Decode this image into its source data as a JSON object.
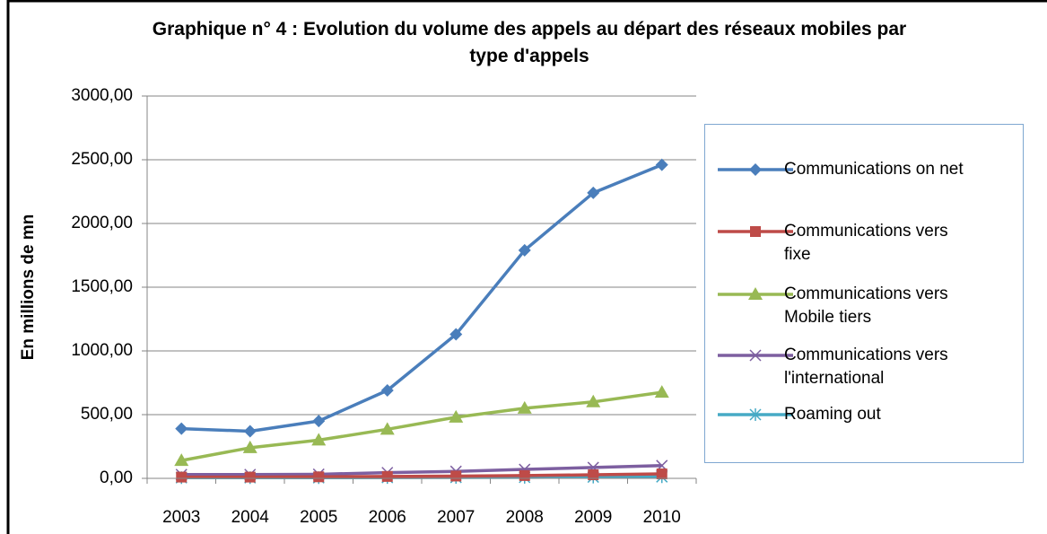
{
  "chart_data": {
    "type": "line",
    "title": "Graphique n° 4 : Evolution du volume des appels au départ des réseaux mobiles par type d'appels",
    "y_label": "En millions de mn",
    "categories": [
      "2003",
      "2004",
      "2005",
      "2006",
      "2007",
      "2008",
      "2009",
      "2010"
    ],
    "series": [
      {
        "name": "Communications on net",
        "color": "#4a7ebb",
        "marker": "diamond",
        "values": [
          390,
          370,
          450,
          690,
          1130,
          1790,
          2240,
          2460
        ]
      },
      {
        "name": "Communications vers fixe",
        "color": "#be4b48",
        "marker": "square",
        "values": [
          10,
          10,
          12,
          15,
          18,
          22,
          28,
          35
        ]
      },
      {
        "name": "Communications vers Mobile tiers",
        "color": "#98b954",
        "marker": "triangle",
        "values": [
          140,
          240,
          300,
          385,
          480,
          550,
          600,
          675
        ]
      },
      {
        "name": "Communications vers l'international",
        "color": "#7d5fa0",
        "marker": "x",
        "values": [
          30,
          30,
          32,
          45,
          55,
          70,
          85,
          100
        ]
      },
      {
        "name": "Roaming out",
        "color": "#46aac5",
        "marker": "star",
        "values": [
          5,
          5,
          5,
          6,
          7,
          8,
          10,
          12
        ]
      }
    ],
    "ylim": [
      0,
      3000
    ],
    "yticks": [
      {
        "value": 0,
        "label": "0,00"
      },
      {
        "value": 500,
        "label": "500,00"
      },
      {
        "value": 1000,
        "label": "1000,00"
      },
      {
        "value": 1500,
        "label": "1500,00"
      },
      {
        "value": 2000,
        "label": "2000,00"
      },
      {
        "value": 2500,
        "label": "2500,00"
      },
      {
        "value": 3000,
        "label": "3000,00"
      }
    ],
    "grid": true,
    "legend": "right"
  }
}
